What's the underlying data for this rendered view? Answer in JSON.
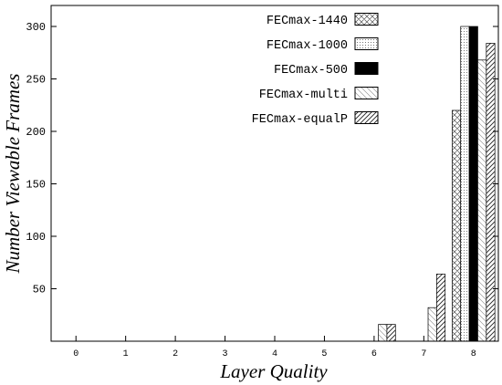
{
  "chart_data": {
    "type": "bar",
    "xlabel": "Layer Quality",
    "ylabel": "Number Viewable Frames",
    "x_ticks": [
      "0",
      "1",
      "2",
      "3",
      "4",
      "5",
      "6",
      "7",
      "8"
    ],
    "y_ticks": [
      "50",
      "100",
      "150",
      "200",
      "250",
      "300"
    ],
    "xlim": [
      -0.5,
      8.5
    ],
    "ylim": [
      0,
      320
    ],
    "grid": false,
    "legend_position": "top-right",
    "series": [
      {
        "name": "FECmax-1440",
        "pattern": "crosshatch",
        "values": [
          0,
          0,
          0,
          0,
          0,
          0,
          0,
          0,
          220
        ]
      },
      {
        "name": "FECmax-1000",
        "pattern": "dots",
        "values": [
          0,
          0,
          0,
          0,
          0,
          0,
          0,
          0,
          300
        ]
      },
      {
        "name": "FECmax-500",
        "pattern": "solid",
        "values": [
          0,
          0,
          0,
          0,
          0,
          0,
          0,
          0,
          300
        ]
      },
      {
        "name": "FECmax-multi",
        "pattern": "light-diagonal",
        "values": [
          0,
          0,
          0,
          0,
          0,
          0,
          16,
          32,
          268
        ]
      },
      {
        "name": "FECmax-equalP",
        "pattern": "diagonal",
        "values": [
          0,
          0,
          0,
          0,
          0,
          0,
          16,
          64,
          284
        ]
      }
    ]
  }
}
